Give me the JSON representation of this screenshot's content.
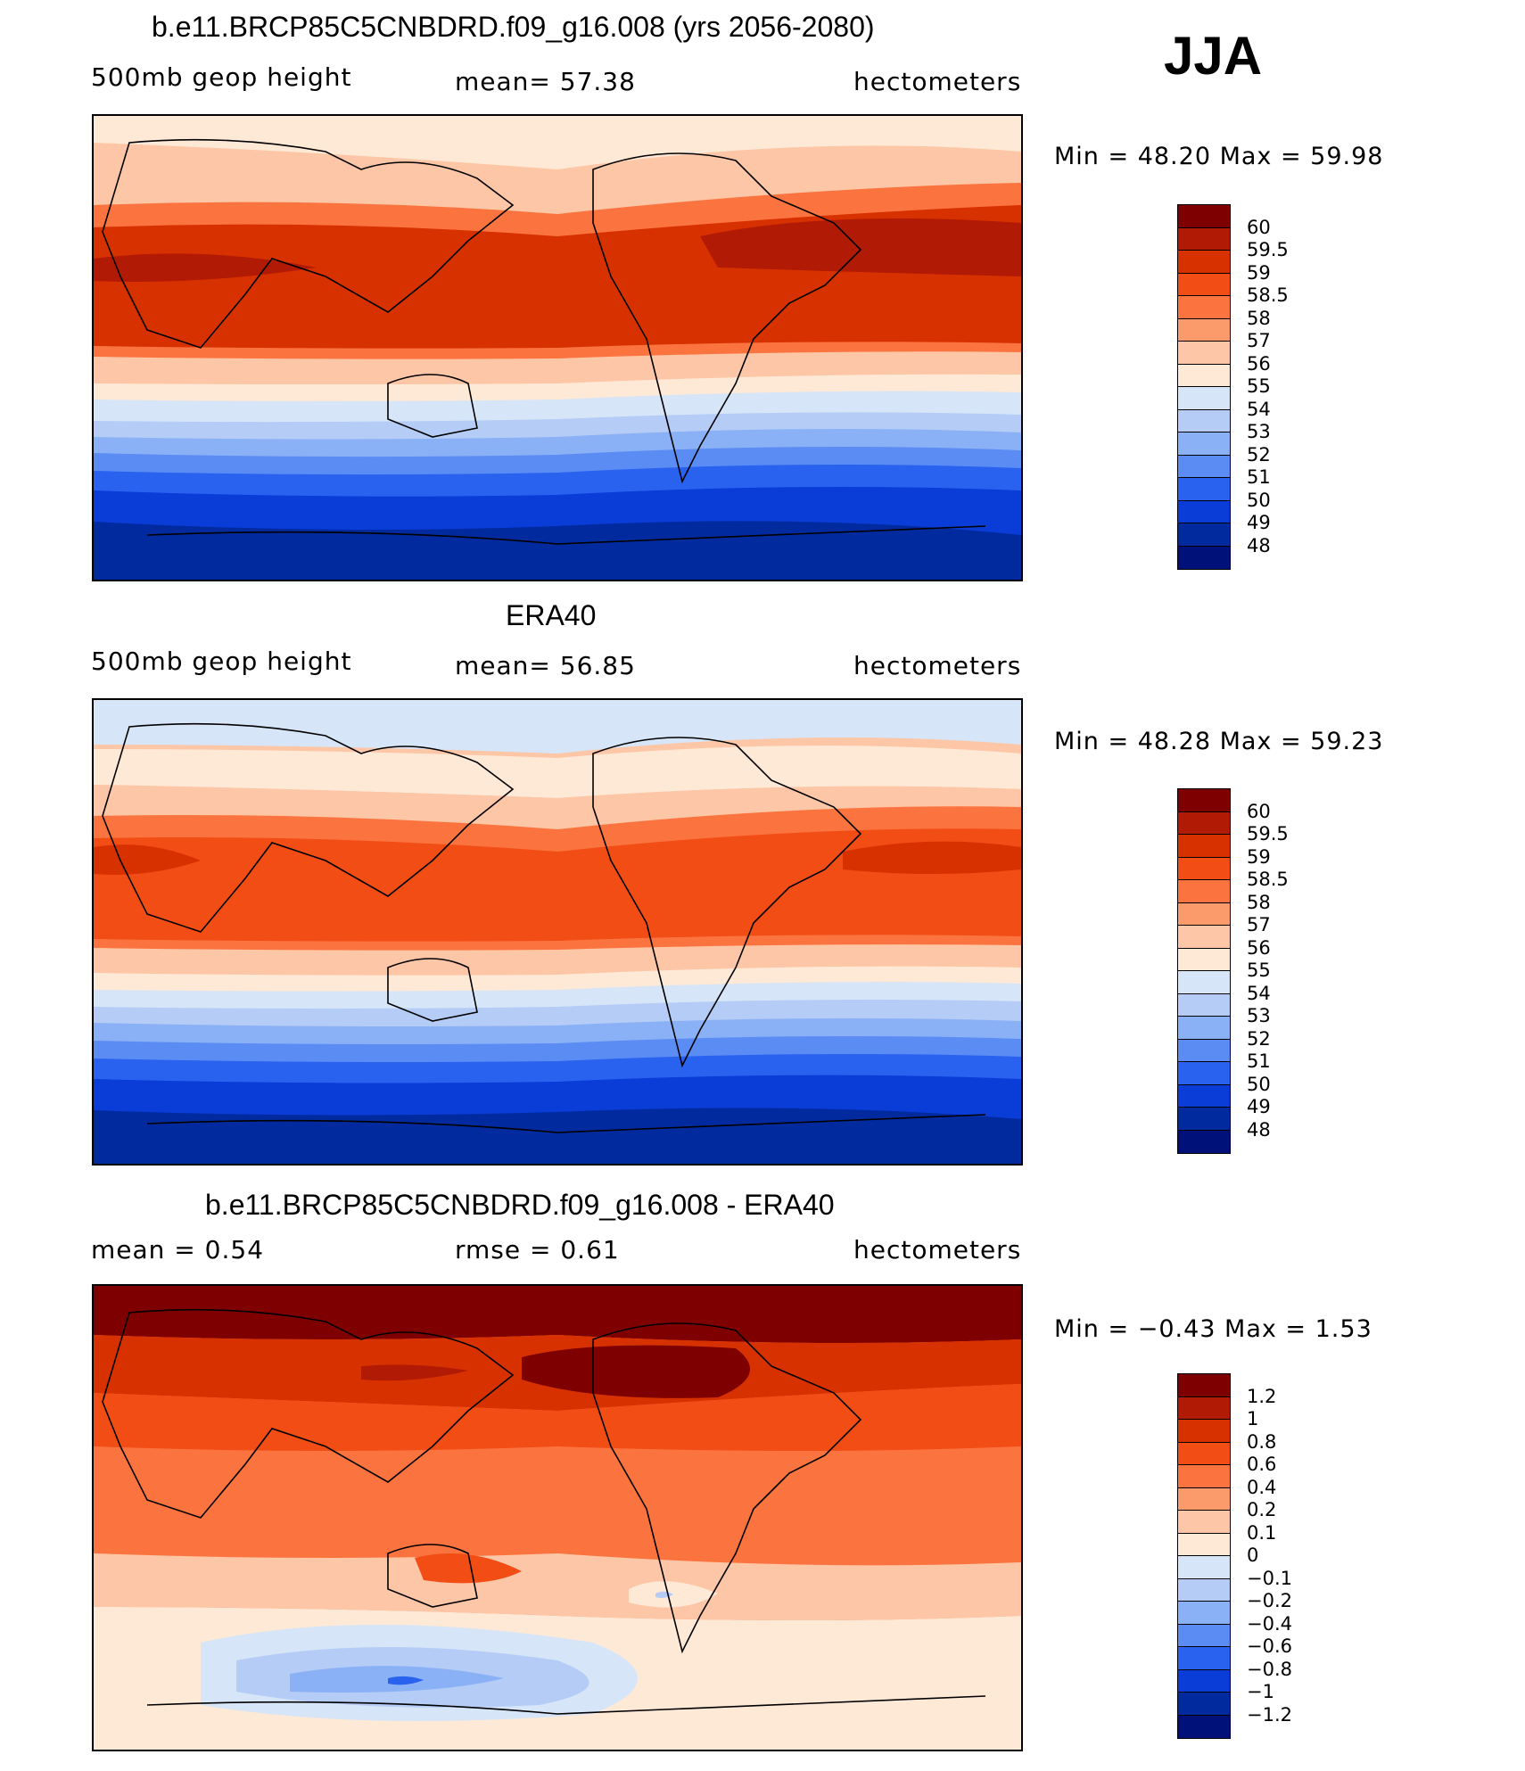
{
  "season": "JJA",
  "panels": [
    {
      "title": "b.e11.BRCP85C5CNBDRD.f09_g16.008 (yrs 2056-2080)",
      "left_label": "500mb  geop  height",
      "center_label": "mean=   57.38",
      "right_label": "hectometers",
      "minmax": "Min  =    48.20  Max  =    59.98",
      "colorbar_labels": [
        "60",
        "59.5",
        "59",
        "58.5",
        "58",
        "57",
        "56",
        "55",
        "54",
        "53",
        "52",
        "51",
        "50",
        "49",
        "48"
      ]
    },
    {
      "title": "ERA40",
      "left_label": "500mb  geop  height",
      "center_label": "mean=   56.85",
      "right_label": "hectometers",
      "minmax": "Min  =    48.28  Max  =    59.23",
      "colorbar_labels": [
        "60",
        "59.5",
        "59",
        "58.5",
        "58",
        "57",
        "56",
        "55",
        "54",
        "53",
        "52",
        "51",
        "50",
        "49",
        "48"
      ]
    },
    {
      "title": "b.e11.BRCP85C5CNBDRD.f09_g16.008 - ERA40",
      "left_label": "mean  =     0.54",
      "center_label": "rmse  =     0.61",
      "right_label": "hectometers",
      "minmax": "Min  =    −0.43  Max  =     1.53",
      "colorbar_labels": [
        "1.2",
        "1",
        "0.8",
        "0.6",
        "0.4",
        "0.2",
        "0.1",
        "0",
        "−0.1",
        "−0.2",
        "−0.4",
        "−0.6",
        "−0.8",
        "−1",
        "−1.2"
      ]
    }
  ],
  "colors": {
    "scale": [
      "#7f0000",
      "#b11a05",
      "#d83100",
      "#f24d15",
      "#fb7440",
      "#fb9a6a",
      "#fdc6a6",
      "#fee8d6",
      "#d6e6f8",
      "#b4ccf6",
      "#8ab0f6",
      "#5a8cf4",
      "#2a62f0",
      "#0a3cd8",
      "#002a9e",
      "#00127a"
    ]
  }
}
